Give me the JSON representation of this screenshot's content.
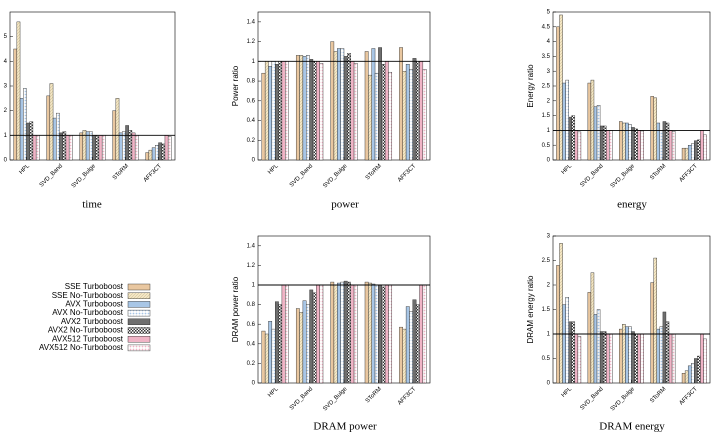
{
  "legend": [
    {
      "name": "SSE Turboboost",
      "color": "#e9c7a0",
      "pattern": "solid"
    },
    {
      "name": "SSE No-Turboboost",
      "color": "#f3e6c4",
      "pattern": "stripes"
    },
    {
      "name": "AVX Turboboost",
      "color": "#a8c6e6",
      "pattern": "solid"
    },
    {
      "name": "AVX No-Turboboost",
      "color": "#a8c6e6",
      "pattern": "dots"
    },
    {
      "name": "AVX2 Turboboost",
      "color": "#6e6e6e",
      "pattern": "solid"
    },
    {
      "name": "AVX2 No-Turboboost",
      "color": "#333333",
      "pattern": "checker"
    },
    {
      "name": "AVX512 Turboboost",
      "color": "#f0b4c6",
      "pattern": "solid"
    },
    {
      "name": "AVX512 No-Turboboost",
      "color": "#f0b4c6",
      "pattern": "dots"
    }
  ],
  "chart_data": [
    {
      "type": "bar",
      "title": "time",
      "categories": [
        "HPL",
        "SVD_Band",
        "SVD_Bulge",
        "SToRM",
        "AFF3CT"
      ],
      "ylim": [
        0,
        6
      ],
      "yticks": [
        0,
        1,
        2,
        3,
        4,
        5
      ],
      "refline": 1,
      "series": [
        {
          "values": [
            4.5,
            2.6,
            1.1,
            2.0,
            0.3
          ]
        },
        {
          "values": [
            5.6,
            3.1,
            1.2,
            2.5,
            0.4
          ]
        },
        {
          "values": [
            2.5,
            1.7,
            1.15,
            1.1,
            0.5
          ]
        },
        {
          "values": [
            2.9,
            1.9,
            1.15,
            1.15,
            0.6
          ]
        },
        {
          "values": [
            1.5,
            1.1,
            1.0,
            1.4,
            0.7
          ]
        },
        {
          "values": [
            1.55,
            1.15,
            1.0,
            1.2,
            0.65
          ]
        },
        {
          "values": [
            1.0,
            1.0,
            1.0,
            1.1,
            1.0
          ]
        },
        {
          "values": [
            1.0,
            1.0,
            1.0,
            1.0,
            0.95
          ]
        }
      ]
    },
    {
      "type": "bar",
      "title": "power",
      "ylabel": "Power ratio",
      "categories": [
        "HPL",
        "SVD_Band",
        "SVD_Bulge",
        "SToRM",
        "AFF3CT"
      ],
      "ylim": [
        0,
        1.5
      ],
      "yticks": [
        0,
        0.2,
        0.4,
        0.6,
        0.8,
        1,
        1.2,
        1.4
      ],
      "refline": 1,
      "series": [
        {
          "values": [
            0.88,
            1.06,
            1.2,
            1.1,
            1.14
          ]
        },
        {
          "values": [
            1.0,
            1.06,
            1.1,
            0.86,
            0.9
          ]
        },
        {
          "values": [
            0.95,
            1.05,
            1.13,
            1.13,
            0.97
          ]
        },
        {
          "values": [
            1.0,
            1.06,
            1.13,
            0.88,
            0.92
          ]
        },
        {
          "values": [
            0.97,
            1.02,
            1.05,
            1.14,
            1.03
          ]
        },
        {
          "values": [
            1.0,
            1.0,
            1.08,
            0.97,
            1.0
          ]
        },
        {
          "values": [
            1.0,
            1.0,
            1.0,
            1.0,
            1.0
          ]
        },
        {
          "values": [
            1.0,
            0.98,
            0.98,
            0.89,
            0.92
          ]
        }
      ]
    },
    {
      "type": "bar",
      "title": "energy",
      "ylabel": "Energy ratio",
      "categories": [
        "HPL",
        "SVD_Band",
        "SVD_Bulge",
        "SToRM",
        "AFF3CT"
      ],
      "ylim": [
        0,
        5
      ],
      "yticks": [
        0,
        0.5,
        1,
        1.5,
        2,
        2.5,
        3,
        3.5,
        4,
        4.5,
        5
      ],
      "refline": 1,
      "series": [
        {
          "values": [
            4.5,
            2.6,
            1.3,
            2.15,
            0.4
          ]
        },
        {
          "values": [
            4.9,
            2.7,
            1.25,
            2.1,
            0.4
          ]
        },
        {
          "values": [
            2.6,
            1.8,
            1.25,
            1.25,
            0.5
          ]
        },
        {
          "values": [
            2.7,
            1.85,
            1.2,
            1.0,
            0.55
          ]
        },
        {
          "values": [
            1.45,
            1.15,
            1.1,
            1.3,
            0.65
          ]
        },
        {
          "values": [
            1.5,
            1.15,
            1.05,
            1.25,
            0.68
          ]
        },
        {
          "values": [
            1.0,
            1.0,
            1.0,
            1.0,
            1.0
          ]
        },
        {
          "values": [
            0.95,
            1.0,
            0.98,
            0.97,
            0.85
          ]
        }
      ]
    },
    {
      "type": "bar",
      "title": "DRAM power",
      "ylabel": "DRAM power ratio",
      "categories": [
        "HPL",
        "SVD_Band",
        "SVD_Bulge",
        "SToRM",
        "AFF3CT"
      ],
      "ylim": [
        0,
        1.5
      ],
      "yticks": [
        0,
        0.2,
        0.4,
        0.6,
        0.8,
        1,
        1.2,
        1.4
      ],
      "refline": 1,
      "series": [
        {
          "values": [
            0.53,
            0.76,
            1.03,
            1.03,
            0.57
          ]
        },
        {
          "values": [
            0.5,
            0.72,
            1.0,
            1.02,
            0.55
          ]
        },
        {
          "values": [
            0.63,
            0.84,
            1.02,
            1.01,
            0.78
          ]
        },
        {
          "values": [
            0.55,
            0.8,
            1.03,
            1.0,
            0.73
          ]
        },
        {
          "values": [
            0.83,
            0.95,
            1.04,
            1.0,
            0.85
          ]
        },
        {
          "values": [
            0.8,
            0.92,
            1.03,
            0.98,
            0.8
          ]
        },
        {
          "values": [
            1.0,
            1.0,
            1.0,
            1.0,
            1.0
          ]
        },
        {
          "values": [
            1.0,
            1.0,
            1.0,
            1.0,
            1.0
          ]
        }
      ]
    },
    {
      "type": "bar",
      "title": "DRAM energy",
      "ylabel": "DRAM energy ratio",
      "categories": [
        "HPL",
        "SVD_Band",
        "SVD_Bulge",
        "SToRM",
        "AFF3CT"
      ],
      "ylim": [
        0,
        3
      ],
      "yticks": [
        0,
        0.5,
        1,
        1.5,
        2,
        2.5,
        3
      ],
      "refline": 1,
      "series": [
        {
          "values": [
            2.4,
            1.85,
            1.1,
            2.05,
            0.2
          ]
        },
        {
          "values": [
            2.85,
            2.25,
            1.2,
            2.55,
            0.25
          ]
        },
        {
          "values": [
            1.6,
            1.4,
            1.15,
            1.1,
            0.35
          ]
        },
        {
          "values": [
            1.75,
            1.5,
            1.15,
            1.15,
            0.4
          ]
        },
        {
          "values": [
            1.25,
            1.05,
            1.05,
            1.45,
            0.5
          ]
        },
        {
          "values": [
            1.25,
            1.05,
            1.0,
            1.25,
            0.55
          ]
        },
        {
          "values": [
            1.0,
            1.0,
            1.0,
            1.0,
            1.0
          ]
        },
        {
          "values": [
            0.95,
            1.0,
            1.0,
            1.0,
            0.9
          ]
        }
      ]
    }
  ]
}
